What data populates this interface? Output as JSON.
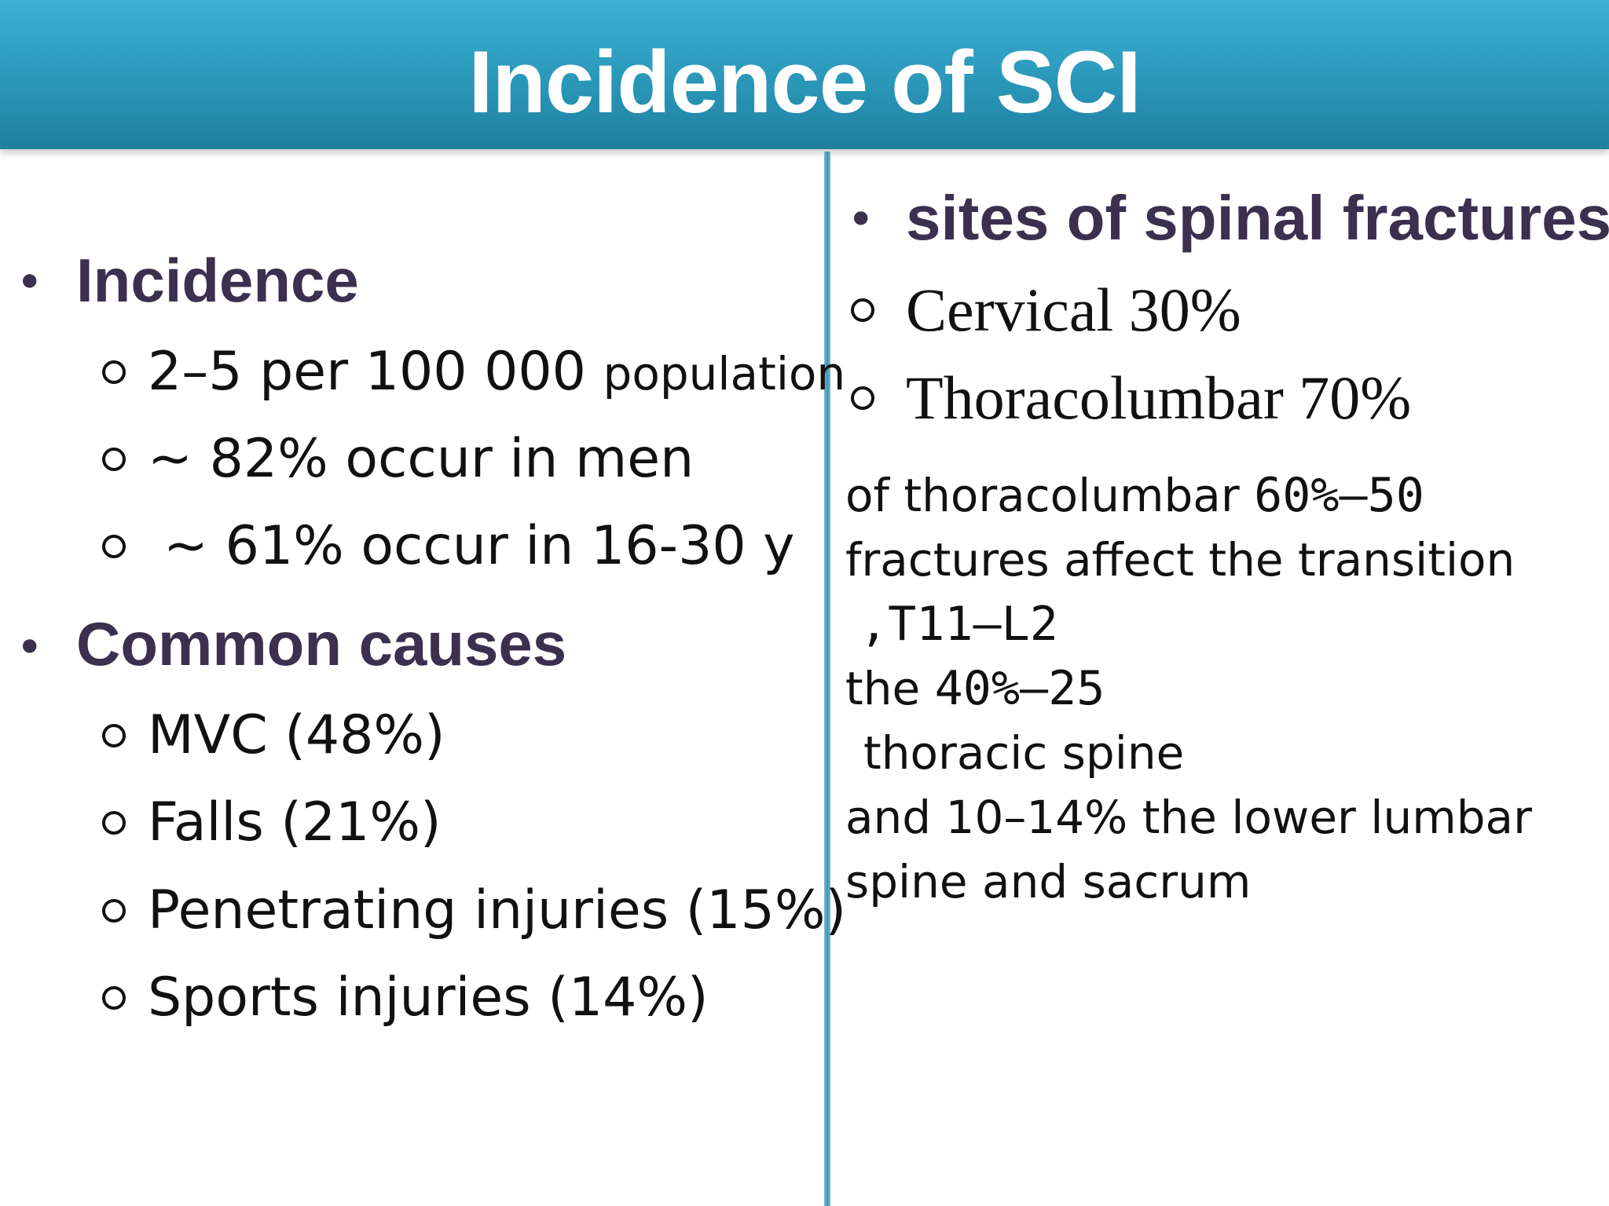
{
  "title": "Incidence of SCI",
  "left": {
    "incidence_heading": "Incidence",
    "incidence_items": [
      "2–5 per 100 000",
      "population",
      "~ 82% occur in men",
      "~ 61% occur in 16-30 y"
    ],
    "causes_heading": "Common causes",
    "causes_items": [
      "MVC (48%)",
      "Falls (21%)",
      "Penetrating injuries (15%)",
      "Sports injuries (14%)"
    ]
  },
  "right": {
    "heading": "sites of spinal fractures",
    "items": [
      "Cervical 30%",
      "Thoracolumbar 70%"
    ],
    "text": {
      "line1a": "of thoracolumbar",
      "line1b": "60%–50",
      "line2": "fractures affect the transition",
      "line3": ",T11–L2",
      "line4a": "the",
      "line4b": "40%–25",
      "line5": "thoracic spine",
      "line6": "and 10–14% the lower lumbar",
      "line7": "spine and sacrum"
    }
  },
  "colors": {
    "header": "#2a97b9",
    "heading_text": "#3b3050",
    "divider": "#3f93b5"
  }
}
